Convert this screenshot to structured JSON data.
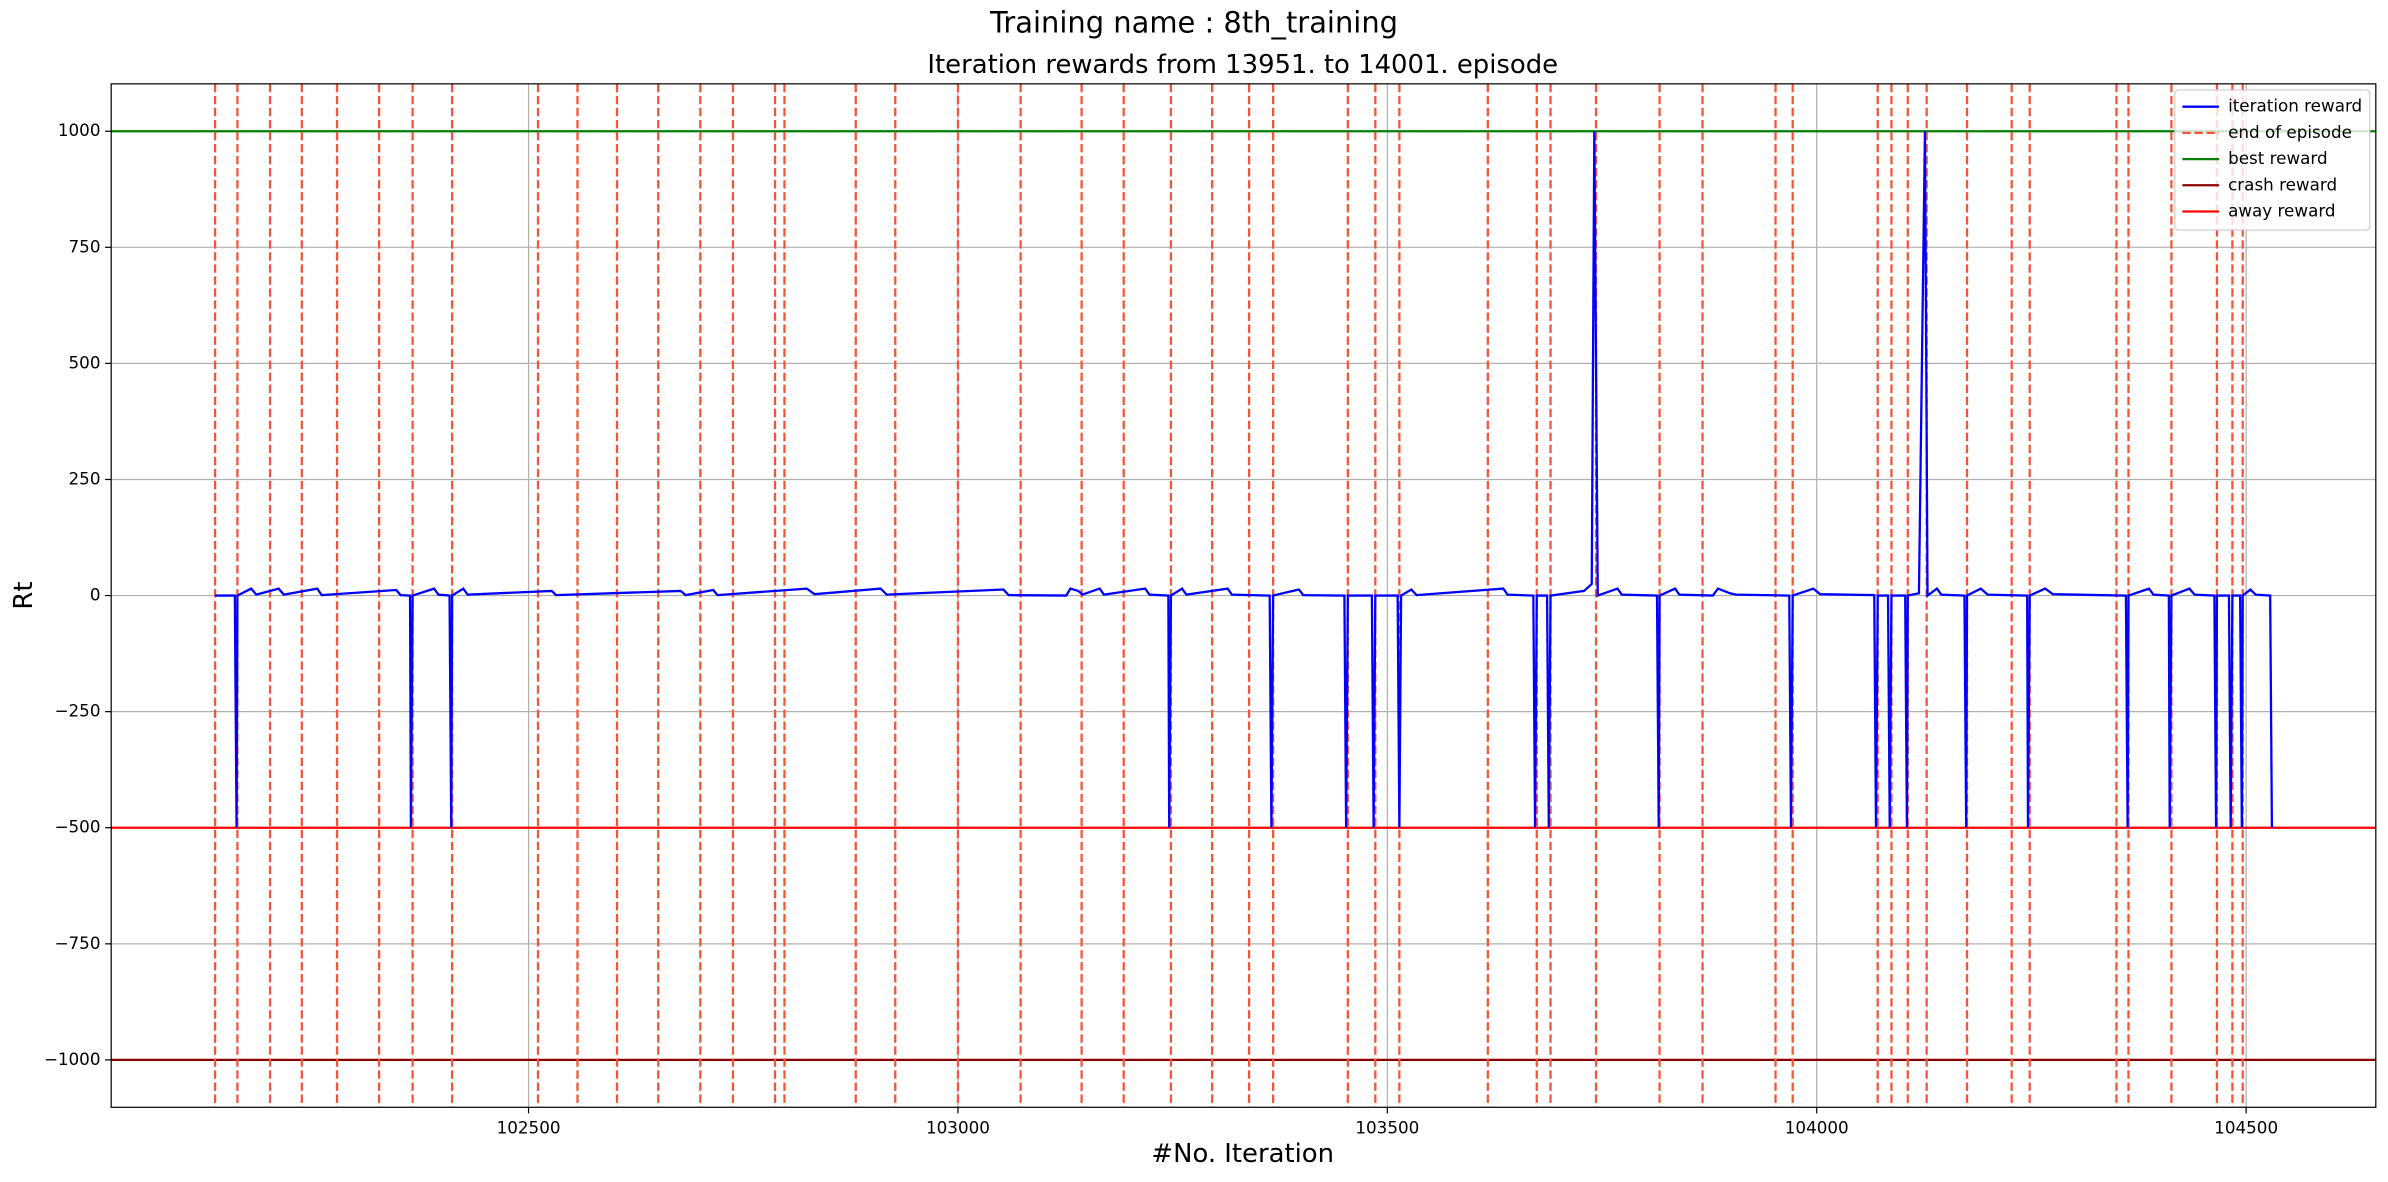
{
  "chart_data": {
    "type": "line",
    "title": "Training name : 8th_training",
    "subtitle": "Iteration rewards from 13951. to 14001. episode",
    "xlabel": "#No. Iteration",
    "ylabel": "Rt",
    "xlim": [
      102014,
      104651
    ],
    "ylim": [
      -1102,
      1102
    ],
    "xticks": [
      102500,
      103000,
      103500,
      104000,
      104500
    ],
    "yticks": [
      {
        "value": -1000,
        "label": "−1000"
      },
      {
        "value": -750,
        "label": "−750"
      },
      {
        "value": -500,
        "label": "−500"
      },
      {
        "value": -250,
        "label": "−250"
      },
      0,
      250,
      500,
      750,
      1000
    ],
    "grid": true,
    "legend": "upper right",
    "series": [
      {
        "name": "iteration reward",
        "kind": "line",
        "color": "#0000ff",
        "x": [
          102135,
          102158,
          102160,
          102161,
          102177,
          102183,
          102209,
          102215,
          102254,
          102259,
          102346,
          102351,
          102362,
          102363,
          102365,
          102390,
          102395,
          102408,
          102410,
          102411,
          102424,
          102429,
          102527,
          102532,
          102677,
          102683,
          102715,
          102720,
          102824,
          102833,
          102910,
          102917,
          103053,
          103059,
          103126,
          103131,
          103140,
          103145,
          103165,
          103170,
          103218,
          103223,
          103245,
          103246,
          103248,
          103261,
          103266,
          103314,
          103319,
          103363,
          103365,
          103367,
          103397,
          103402,
          103450,
          103452,
          103454,
          103482,
          103484,
          103486,
          103512,
          103514,
          103516,
          103528,
          103534,
          103635,
          103640,
          103670,
          103672,
          103674,
          103686,
          103688,
          103690,
          103729,
          103738,
          103741,
          103745,
          103768,
          103773,
          103814,
          103816,
          103817,
          103835,
          103840,
          103879,
          103885,
          103899,
          103906,
          103968,
          103970,
          103972,
          103996,
          104004,
          104067,
          104069,
          104071,
          104083,
          104085,
          104087,
          104103,
          104105,
          104106,
          104119,
          104126,
          104129,
          104140,
          104145,
          104172,
          104174,
          104175,
          104191,
          104199,
          104245,
          104246,
          104248,
          104266,
          104275,
          104360,
          104362,
          104363,
          104387,
          104392,
          104410,
          104411,
          104413,
          104434,
          104440,
          104463,
          104465,
          104466,
          104480,
          104482,
          104484,
          104493,
          104495,
          104496,
          104505,
          104511,
          104528,
          104530
        ],
        "values": [
          0,
          0,
          -500,
          0,
          15,
          2,
          15,
          2,
          15,
          1,
          12,
          1,
          0,
          -500,
          0,
          15,
          2,
          0,
          -500,
          0,
          15,
          2,
          10,
          1,
          10,
          1,
          12,
          1,
          15,
          3,
          15,
          2,
          13,
          1,
          0,
          15,
          10,
          2,
          15,
          2,
          15,
          2,
          0,
          -500,
          0,
          15,
          2,
          15,
          2,
          0,
          -500,
          0,
          13,
          1,
          0,
          -500,
          0,
          0,
          -500,
          0,
          0,
          -500,
          0,
          13,
          1,
          15,
          2,
          0,
          -500,
          0,
          0,
          -500,
          0,
          10,
          25,
          1000,
          0,
          15,
          2,
          0,
          -500,
          0,
          15,
          2,
          0,
          15,
          5,
          2,
          0,
          -500,
          0,
          15,
          3,
          1,
          -500,
          0,
          0,
          -500,
          0,
          0,
          -500,
          0,
          5,
          1000,
          0,
          15,
          2,
          0,
          -500,
          0,
          15,
          2,
          0,
          -500,
          0,
          15,
          3,
          0,
          -500,
          0,
          15,
          2,
          0,
          -500,
          0,
          15,
          2,
          0,
          -500,
          0,
          0,
          -500,
          0,
          0,
          -500,
          0,
          13,
          2,
          0,
          -500
        ]
      },
      {
        "name": "end of episode",
        "kind": "vlines",
        "color": "#f4553a",
        "x": [
          102135,
          102161,
          102199,
          102236,
          102277,
          102326,
          102365,
          102411,
          102511,
          102557,
          102603,
          102651,
          102700,
          102738,
          102787,
          102798,
          102881,
          102927,
          103000,
          103073,
          103144,
          103193,
          103248,
          103296,
          103339,
          103367,
          103454,
          103486,
          103514,
          103617,
          103674,
          103690,
          103743,
          103817,
          103867,
          103952,
          103972,
          104071,
          104087,
          104106,
          104128,
          104175,
          104227,
          104248,
          104349,
          104363,
          104413,
          104466,
          104484,
          104496
        ]
      },
      {
        "name": "best reward",
        "kind": "hline",
        "color": "#008000",
        "value": 1000
      },
      {
        "name": "crash reward",
        "kind": "hline",
        "color": "#8b0000",
        "value": -1000
      },
      {
        "name": "away reward",
        "kind": "hline",
        "color": "#ff0000",
        "value": -500
      }
    ]
  }
}
